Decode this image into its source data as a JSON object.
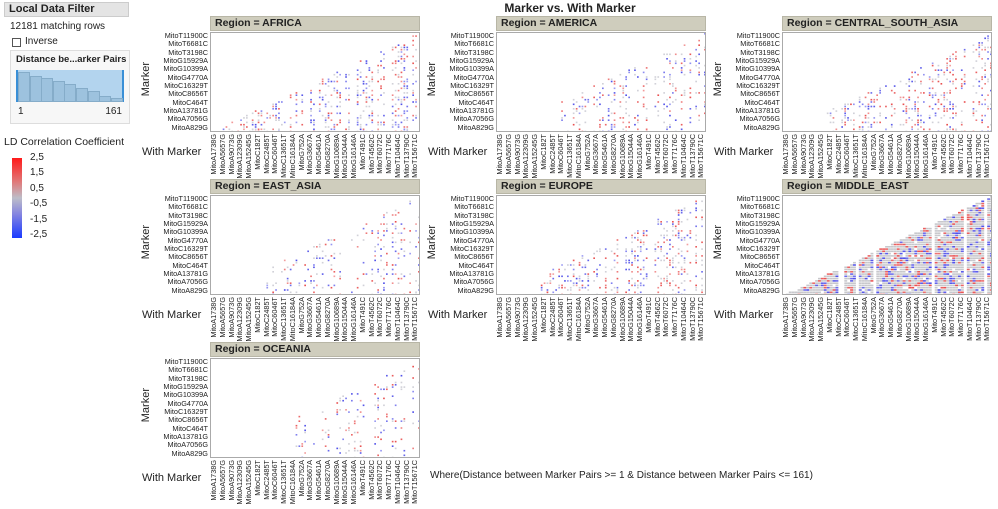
{
  "filter": {
    "title": "Local Data Filter",
    "matching_rows": "12181 matching rows",
    "inverse_label": "Inverse",
    "inverse_checked": false,
    "slider_title": "Distance be...arker Pairs",
    "range_min": "1",
    "range_max": "161"
  },
  "chart_data": {
    "type": "heatmap",
    "title": "Marker vs. With Marker",
    "xlabel": "With Marker",
    "ylabel": "Marker",
    "facet_prefix": "Region = ",
    "panels": [
      "AFRICA",
      "AMERICA",
      "CENTRAL_SOUTH_ASIA",
      "EAST_ASIA",
      "EUROPE",
      "MIDDLE_EAST",
      "OCEANIA"
    ],
    "x_ticks": [
      "MitoA1738G",
      "MitoA5657G",
      "MitoA9073G",
      "MitoA12309G",
      "MitoA15245G",
      "MitoC182T",
      "MitoC2485T",
      "MitoC6046T",
      "MitoC13651T",
      "MitoC16184A",
      "MitoG752A",
      "MitoG3667A",
      "MitoG5461A",
      "MitoG8270A",
      "MitoG10689A",
      "MitoG15044A",
      "MitoG16146A",
      "MitoT491C",
      "MitoT4562C",
      "MitoT6072C",
      "MitoT7176C",
      "MitoT10464C",
      "MitoT13790C",
      "MitoT15671C"
    ],
    "y_ticks": [
      "MitoT11900C",
      "MitoT6681C",
      "MitoT3198C",
      "MitoG15929A",
      "MitoG10399A",
      "MitoG4770A",
      "MitoC16329T",
      "MitoC8656T",
      "MitoC464T",
      "MitoA13781G",
      "MitoA7056G",
      "MitoA829G"
    ],
    "color_scale": {
      "title": "LD Correlation Coefficient",
      "ticks": [
        "2,5",
        "1,5",
        "0,5",
        "-0,5",
        "-1,5",
        "-2,5"
      ],
      "range": [
        -2.5,
        2.5
      ],
      "colors": {
        "high": "#ff1a1a",
        "mid": "#bdbdc8",
        "low": "#1a3aff"
      }
    }
  },
  "footer": "Where(Distance between Marker Pairs >= 1 & Distance between Marker Pairs <= 161)"
}
